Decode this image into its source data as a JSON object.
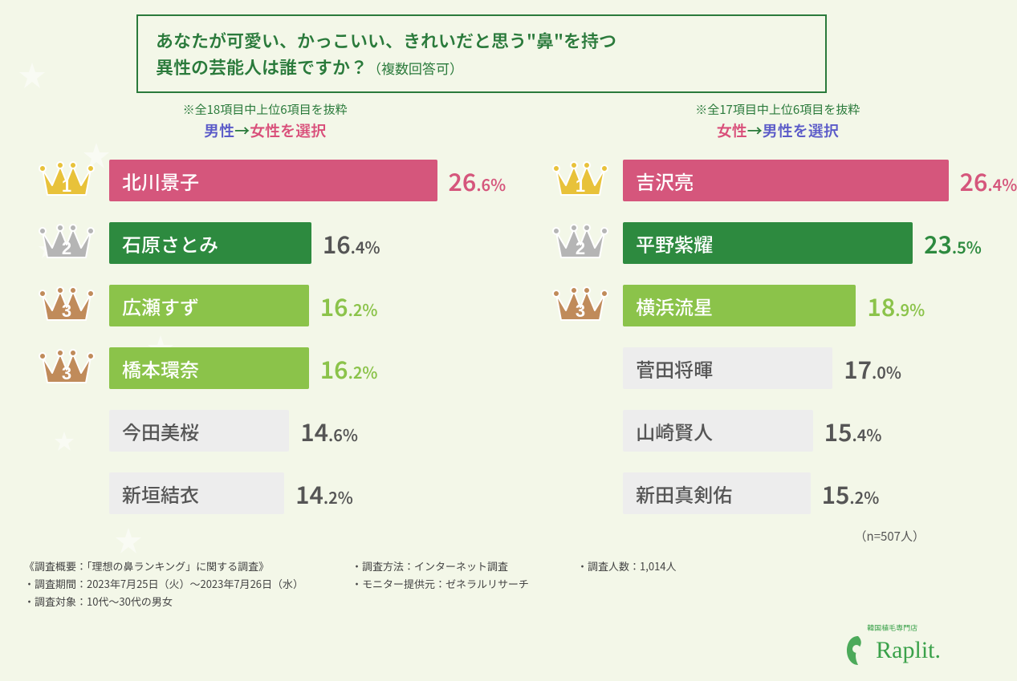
{
  "background_color": "#f3f7e8",
  "max_percent": 28,
  "title": {
    "line1": "あなたが可愛い、かっこいい、きれいだと思う\"鼻\"を持つ",
    "line2": "異性の芸能人は誰ですか？",
    "sub": "（複数回答可）",
    "border_color": "#2a7a3b",
    "text_color": "#2a7a3b"
  },
  "crown_colors": {
    "gold": "#e8c23a",
    "silver": "#b5b5b5",
    "bronze": "#c08b5a"
  },
  "bar_text_color_light": "#ffffff",
  "bar_text_color_dark": "#555555",
  "left": {
    "note": "※全18項目中上位6項目を抜粋",
    "selector_from": "男性",
    "selector_from_color": "#5a5ac8",
    "selector_arrow": "→",
    "selector_to": "女性を選択",
    "selector_to_color": "#d94f7a",
    "rows": [
      {
        "rank": 1,
        "crown": "gold",
        "name": "北川景子",
        "pct_int": "26",
        "pct_dec": ".6",
        "value": 26.6,
        "bar_color": "#d5567c",
        "text_on_bar": true,
        "pct_color": "#d5567c"
      },
      {
        "rank": 2,
        "crown": "silver",
        "name": "石原さとみ",
        "pct_int": "16",
        "pct_dec": ".4",
        "value": 16.4,
        "bar_color": "#2d8a3f",
        "text_on_bar": true,
        "pct_color": "#555555"
      },
      {
        "rank": 3,
        "crown": "bronze",
        "name": "広瀬すず",
        "pct_int": "16",
        "pct_dec": ".2",
        "value": 16.2,
        "bar_color": "#8bc34a",
        "text_on_bar": true,
        "pct_color": "#8bc34a"
      },
      {
        "rank": 3,
        "crown": "bronze",
        "name": "橋本環奈",
        "pct_int": "16",
        "pct_dec": ".2",
        "value": 16.2,
        "bar_color": "#8bc34a",
        "text_on_bar": true,
        "pct_color": "#8bc34a"
      },
      {
        "rank": null,
        "crown": null,
        "name": "今田美桜",
        "pct_int": "14",
        "pct_dec": ".6",
        "value": 14.6,
        "bar_color": "#ededed",
        "text_on_bar": false,
        "pct_color": "#555555"
      },
      {
        "rank": null,
        "crown": null,
        "name": "新垣結衣",
        "pct_int": "14",
        "pct_dec": ".2",
        "value": 14.2,
        "bar_color": "#ededed",
        "text_on_bar": false,
        "pct_color": "#555555"
      }
    ]
  },
  "right": {
    "note": "※全17項目中上位6項目を抜粋",
    "selector_from": "女性",
    "selector_from_color": "#d94f7a",
    "selector_arrow": "→",
    "selector_to": "男性を選択",
    "selector_to_color": "#5a5ac8",
    "rows": [
      {
        "rank": 1,
        "crown": "gold",
        "name": "吉沢亮",
        "pct_int": "26",
        "pct_dec": ".4",
        "value": 26.4,
        "bar_color": "#d5567c",
        "text_on_bar": true,
        "pct_color": "#d5567c"
      },
      {
        "rank": 2,
        "crown": "silver",
        "name": "平野紫耀",
        "pct_int": "23",
        "pct_dec": ".5",
        "value": 23.5,
        "bar_color": "#2d8a3f",
        "text_on_bar": true,
        "pct_color": "#2d8a3f"
      },
      {
        "rank": 3,
        "crown": "bronze",
        "name": "横浜流星",
        "pct_int": "18",
        "pct_dec": ".9",
        "value": 18.9,
        "bar_color": "#8bc34a",
        "text_on_bar": true,
        "pct_color": "#8bc34a"
      },
      {
        "rank": null,
        "crown": null,
        "name": "菅田将暉",
        "pct_int": "17",
        "pct_dec": ".0",
        "value": 17.0,
        "bar_color": "#ededed",
        "text_on_bar": false,
        "pct_color": "#555555"
      },
      {
        "rank": null,
        "crown": null,
        "name": "山崎賢人",
        "pct_int": "15",
        "pct_dec": ".4",
        "value": 15.4,
        "bar_color": "#ededed",
        "text_on_bar": false,
        "pct_color": "#555555"
      },
      {
        "rank": null,
        "crown": null,
        "name": "新田真剣佑",
        "pct_int": "15",
        "pct_dec": ".2",
        "value": 15.2,
        "bar_color": "#ededed",
        "text_on_bar": false,
        "pct_color": "#555555"
      }
    ]
  },
  "n_label": "（n=507人）",
  "footnotes": {
    "col1": [
      "《調査概要：「理想の鼻ランキング」に関する調査》",
      "・調査期間：2023年7月25日（火）〜2023年7月26日（水）",
      "・調査対象：10代〜30代の男女"
    ],
    "col2": [
      "・調査方法：インターネット調査",
      "・モニター提供元：ゼネラルリサーチ"
    ],
    "col3": [
      "・調査人数：1,014人"
    ]
  },
  "logo": {
    "tagline": "韓国植毛専門店",
    "name": "Raplit.",
    "color": "#3aa14a"
  }
}
